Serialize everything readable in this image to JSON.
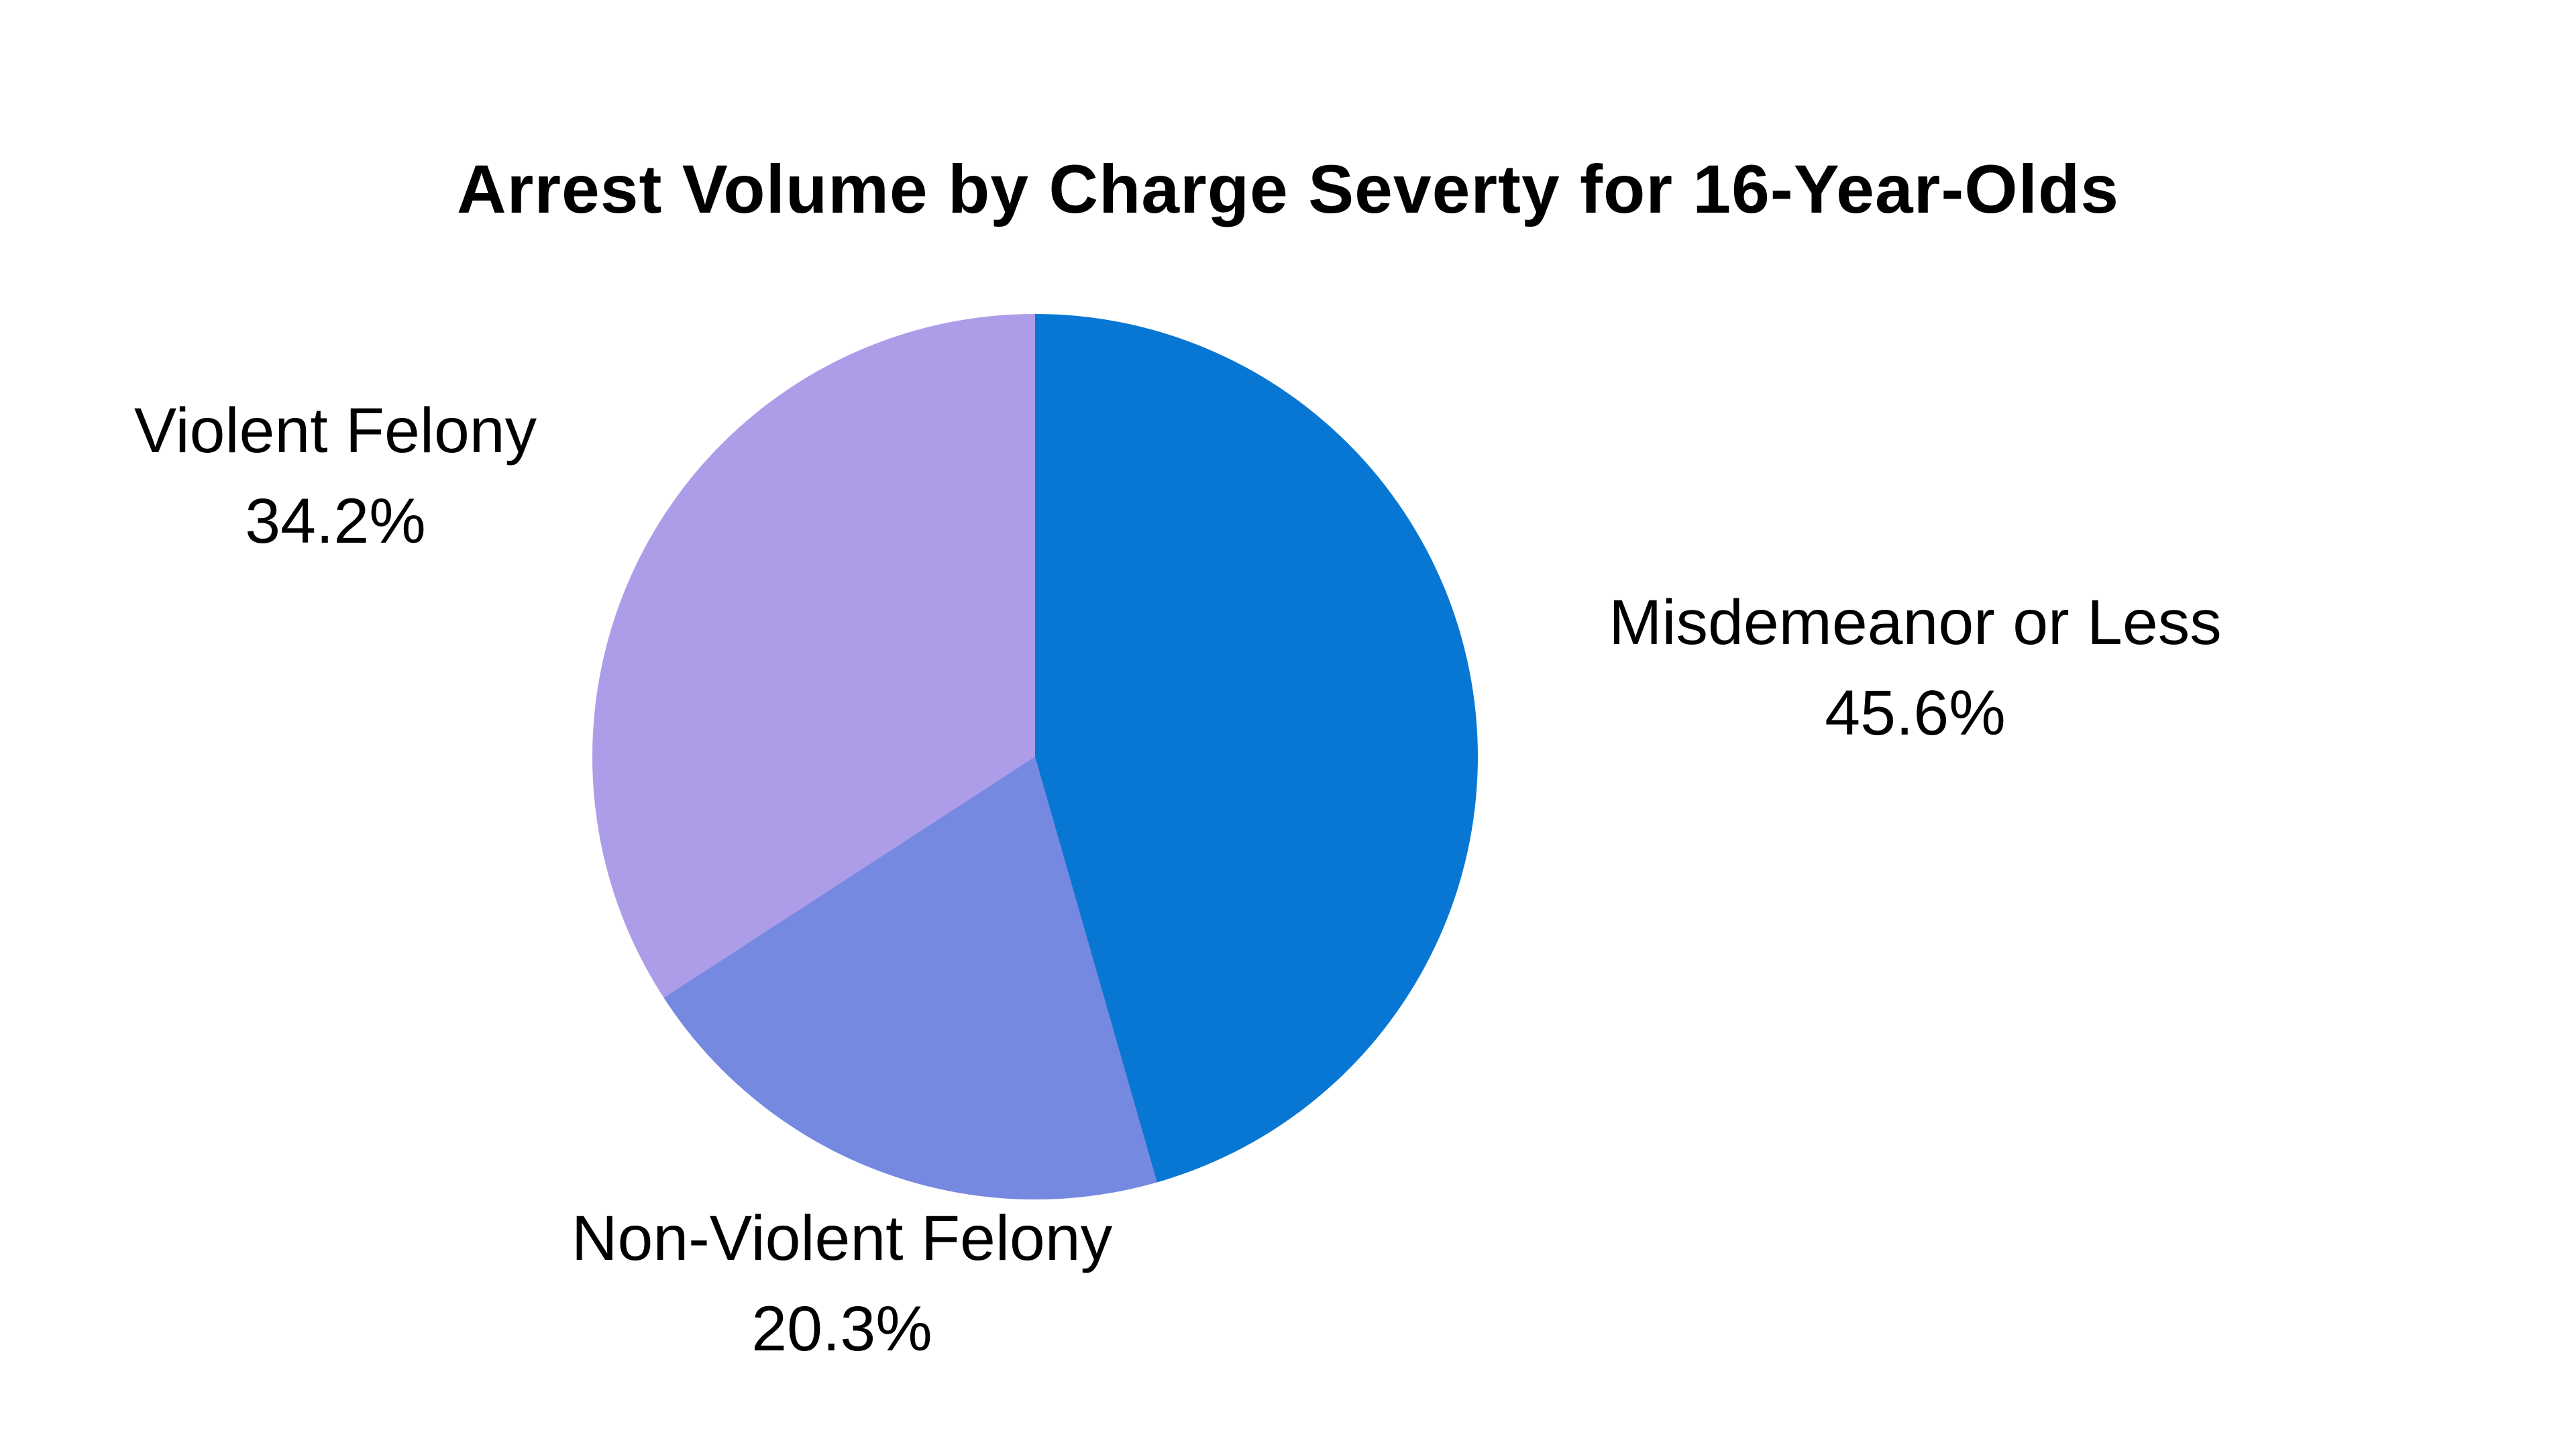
{
  "page": {
    "background_color": "#ffffff"
  },
  "chart_data": {
    "type": "pie",
    "title": "Arrest Volume by Charge Severty for 16-Year-Olds",
    "unit": "percent",
    "start_angle_deg": 0,
    "direction": "clockwise",
    "legend_position": "none",
    "label_style": "outside, two lines (category name above percent)",
    "slices": [
      {
        "label": "Misdemeanor or Less",
        "value": 45.6,
        "pct_label": "45.6%",
        "color": "#0877d4"
      },
      {
        "label": "Non-Violent Felony",
        "value": 20.3,
        "pct_label": "20.3%",
        "color": "#7689e0"
      },
      {
        "label": "Violent Felony",
        "value": 34.2,
        "pct_label": "34.2%",
        "color": "#ad9de9"
      }
    ]
  }
}
